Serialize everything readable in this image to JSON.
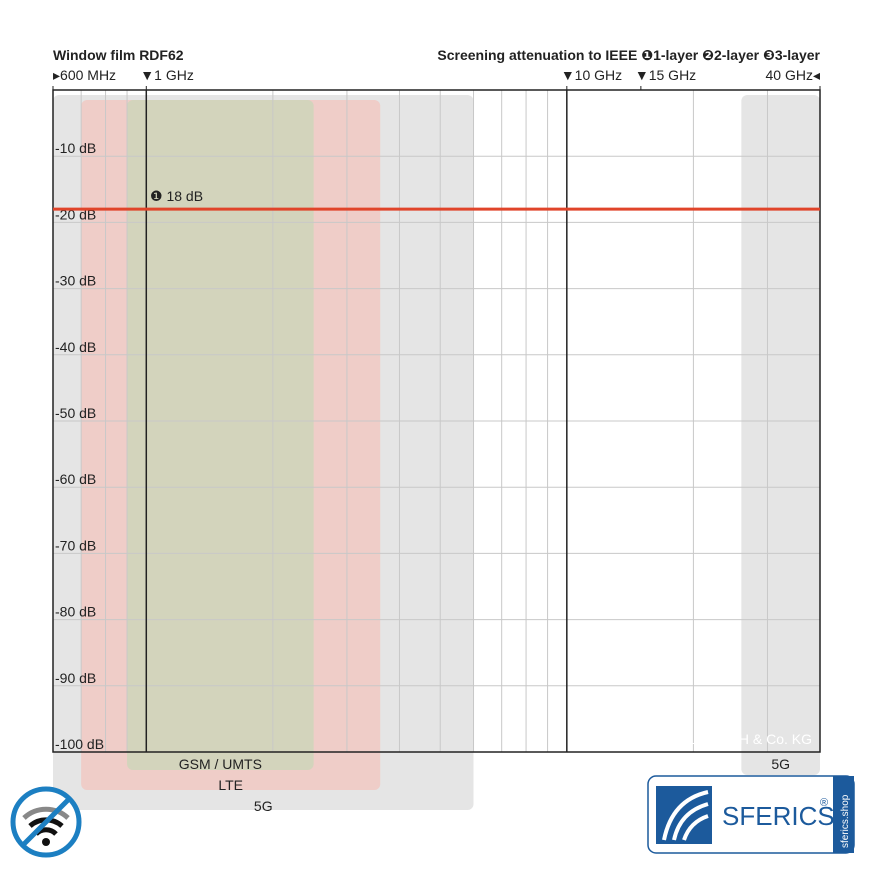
{
  "chart_data": {
    "type": "line",
    "title": "Window film RDF62",
    "subtitle": "Screening attenuation to IEEE ❶1-layer ❷2-layer ❸3-layer",
    "x_log_scale": true,
    "xlim": [
      0.6,
      40
    ],
    "xticks": [
      {
        "value": 0.6,
        "label": "▸600 MHz"
      },
      {
        "value": 1,
        "label": "▼1 GHz"
      },
      {
        "value": 10,
        "label": "▼10 GHz"
      },
      {
        "value": 15,
        "label": "▼15 GHz"
      },
      {
        "value": 40,
        "label": "40 GHz◂"
      }
    ],
    "x_major_lines": [
      1,
      10
    ],
    "x_minor_ticks": [
      0.7,
      0.8,
      0.9,
      2,
      3,
      4,
      5,
      6,
      7,
      8,
      9,
      20,
      30
    ],
    "ylim": [
      -100,
      0
    ],
    "yticks": [
      {
        "value": -10,
        "label": "-10 dB"
      },
      {
        "value": -20,
        "label": "-20 dB"
      },
      {
        "value": -30,
        "label": "-30 dB"
      },
      {
        "value": -40,
        "label": "-40 dB"
      },
      {
        "value": -50,
        "label": "-50 dB"
      },
      {
        "value": -60,
        "label": "-60 dB"
      },
      {
        "value": -70,
        "label": "-70 dB"
      },
      {
        "value": -80,
        "label": "-80 dB"
      },
      {
        "value": -90,
        "label": "-90 dB"
      },
      {
        "value": -100,
        "label": "-100 dB"
      }
    ],
    "grid": true,
    "x": [
      0.6,
      40
    ],
    "series": [
      {
        "name": "❶ 18 dB",
        "color": "#e0442a",
        "values": [
          -18,
          -18
        ]
      }
    ],
    "bands": [
      {
        "label": "5G",
        "range": [
          0.6,
          6
        ],
        "color": "#dcdcdc"
      },
      {
        "label": "LTE",
        "range": [
          0.7,
          3.6
        ],
        "color": "#f2c4bd"
      },
      {
        "label": "GSM / UMTS",
        "range": [
          0.9,
          2.5
        ],
        "color": "#c9d6b8"
      },
      {
        "label": "5G",
        "range": [
          26,
          40
        ],
        "color": "#dcdcdc"
      }
    ],
    "copyright": "© YSHIELD GmbH & Co. KG",
    "brand": "SFERICS",
    "brand_mark": "®",
    "brand_site": "sferics.shop"
  }
}
